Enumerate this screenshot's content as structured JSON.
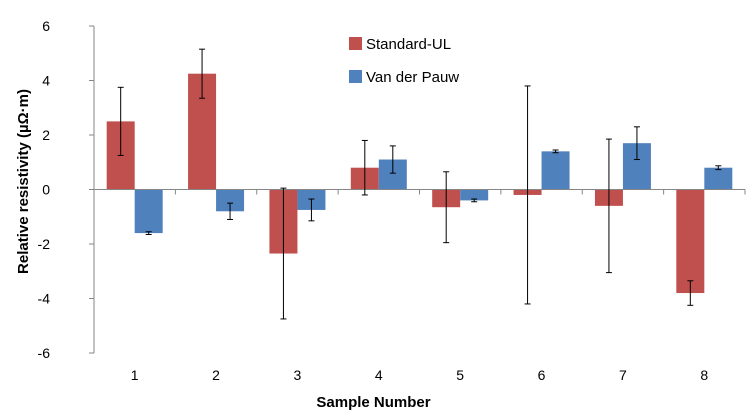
{
  "chart_data": {
    "type": "bar",
    "title": "",
    "xlabel": "Sample Number",
    "ylabel": "Relative resistivity (µΩ·m)",
    "ylim": [
      -6,
      6
    ],
    "yticks": [
      "6",
      "4",
      "2",
      "0",
      "-2",
      "-4",
      "-6"
    ],
    "categories": [
      "1",
      "2",
      "3",
      "4",
      "5",
      "6",
      "7",
      "8"
    ],
    "grid": false,
    "legend": "top-center",
    "series": [
      {
        "name": "Standard-UL",
        "color": "#c0504d",
        "values": [
          2.5,
          4.25,
          -2.35,
          0.8,
          -0.65,
          -0.2,
          -0.6,
          -3.8
        ],
        "errors": [
          1.25,
          0.9,
          2.4,
          1.0,
          1.3,
          4.0,
          2.45,
          0.45
        ]
      },
      {
        "name": "Van der Pauw",
        "color": "#4f81bd",
        "values": [
          -1.6,
          -0.8,
          -0.75,
          1.1,
          -0.4,
          1.4,
          1.7,
          0.8
        ],
        "errors": [
          0.05,
          0.3,
          0.4,
          0.5,
          0.05,
          0.05,
          0.6,
          0.07
        ]
      }
    ]
  }
}
